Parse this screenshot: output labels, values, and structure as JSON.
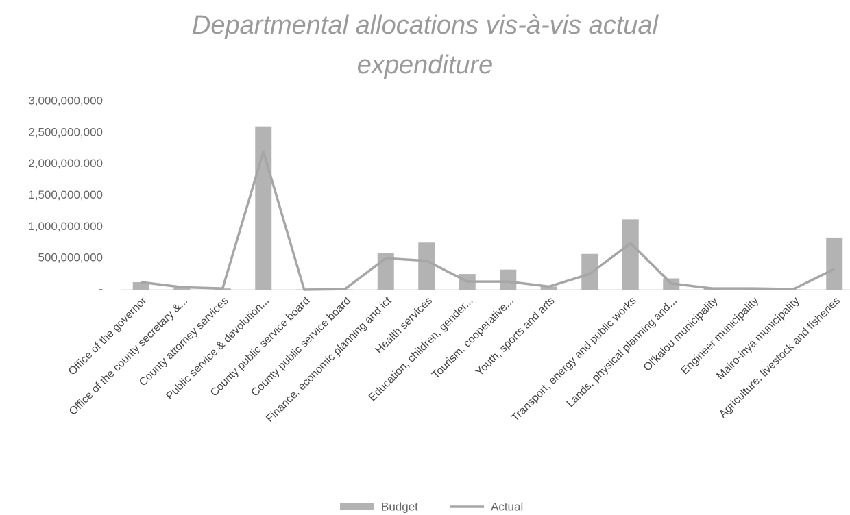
{
  "chart_data": {
    "type": "bar_line",
    "title": "Departmental allocations vis-à-vis actual expenditure",
    "categories": [
      "Office of the governor",
      "Office of the county secretary &...",
      "County attorney services",
      "Public service  & devolution...",
      "County public service board",
      "County public service board",
      "Finance, economic planning and ict",
      "Health services",
      "Education, children, gender...",
      "Tourism, cooperative...",
      "Youth, sports and arts",
      null,
      "Transport, energy and public works",
      "Lands, physical planning and...",
      "Ol'kalou municipality",
      "Engineer municipality",
      "Mairo-inya municipality",
      "Agriculture, livestock and fisheries"
    ],
    "series": [
      {
        "name": "Budget",
        "kind": "bar",
        "color": "#b3b3b3",
        "values": [
          120000000,
          30000000,
          20000000,
          2600000000,
          5000000,
          5000000,
          580000000,
          750000000,
          250000000,
          320000000,
          50000000,
          570000000,
          1120000000,
          180000000,
          20000000,
          10000000,
          5000000,
          830000000
        ]
      },
      {
        "name": "Actual",
        "kind": "line",
        "color": "#a6a6a6",
        "values": [
          120000000,
          40000000,
          20000000,
          2200000000,
          0,
          10000000,
          500000000,
          460000000,
          130000000,
          130000000,
          50000000,
          250000000,
          740000000,
          100000000,
          20000000,
          20000000,
          10000000,
          330000000
        ]
      }
    ],
    "ylim": [
      0,
      3000000000
    ],
    "yticks": [
      {
        "value": 0,
        "label": "-"
      },
      {
        "value": 500000000,
        "label": "500,000,000"
      },
      {
        "value": 1000000000,
        "label": "1,000,000,000"
      },
      {
        "value": 1500000000,
        "label": "1,500,000,000"
      },
      {
        "value": 2000000000,
        "label": "2,000,000,000"
      },
      {
        "value": 2500000000,
        "label": "2,500,000,000"
      },
      {
        "value": 3000000000,
        "label": "3,000,000,000"
      }
    ],
    "grid": false
  }
}
